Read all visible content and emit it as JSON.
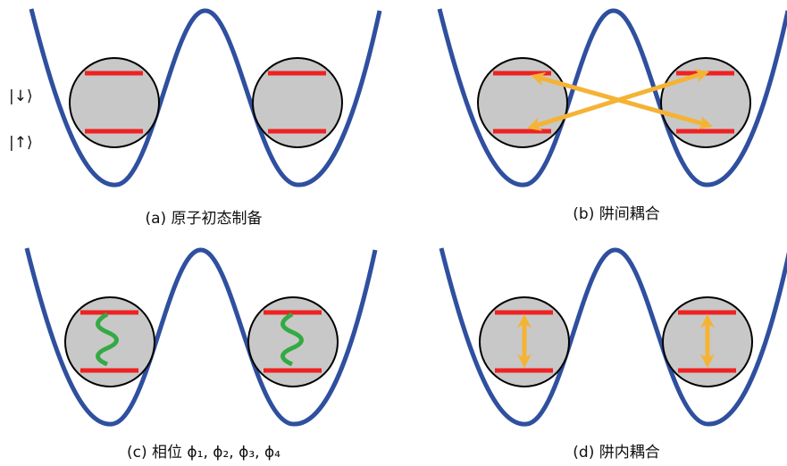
{
  "labels": {
    "spin_down": "|↓⟩",
    "spin_up": "|↑⟩"
  },
  "panels": [
    {
      "caption": "(a) 原子初态制备"
    },
    {
      "caption": "(b) 阱间耦合"
    },
    {
      "caption": "(c) 相位 ϕ₁, ϕ₂, ϕ₃, ϕ₄"
    },
    {
      "caption": "(d) 阱内耦合"
    }
  ]
}
